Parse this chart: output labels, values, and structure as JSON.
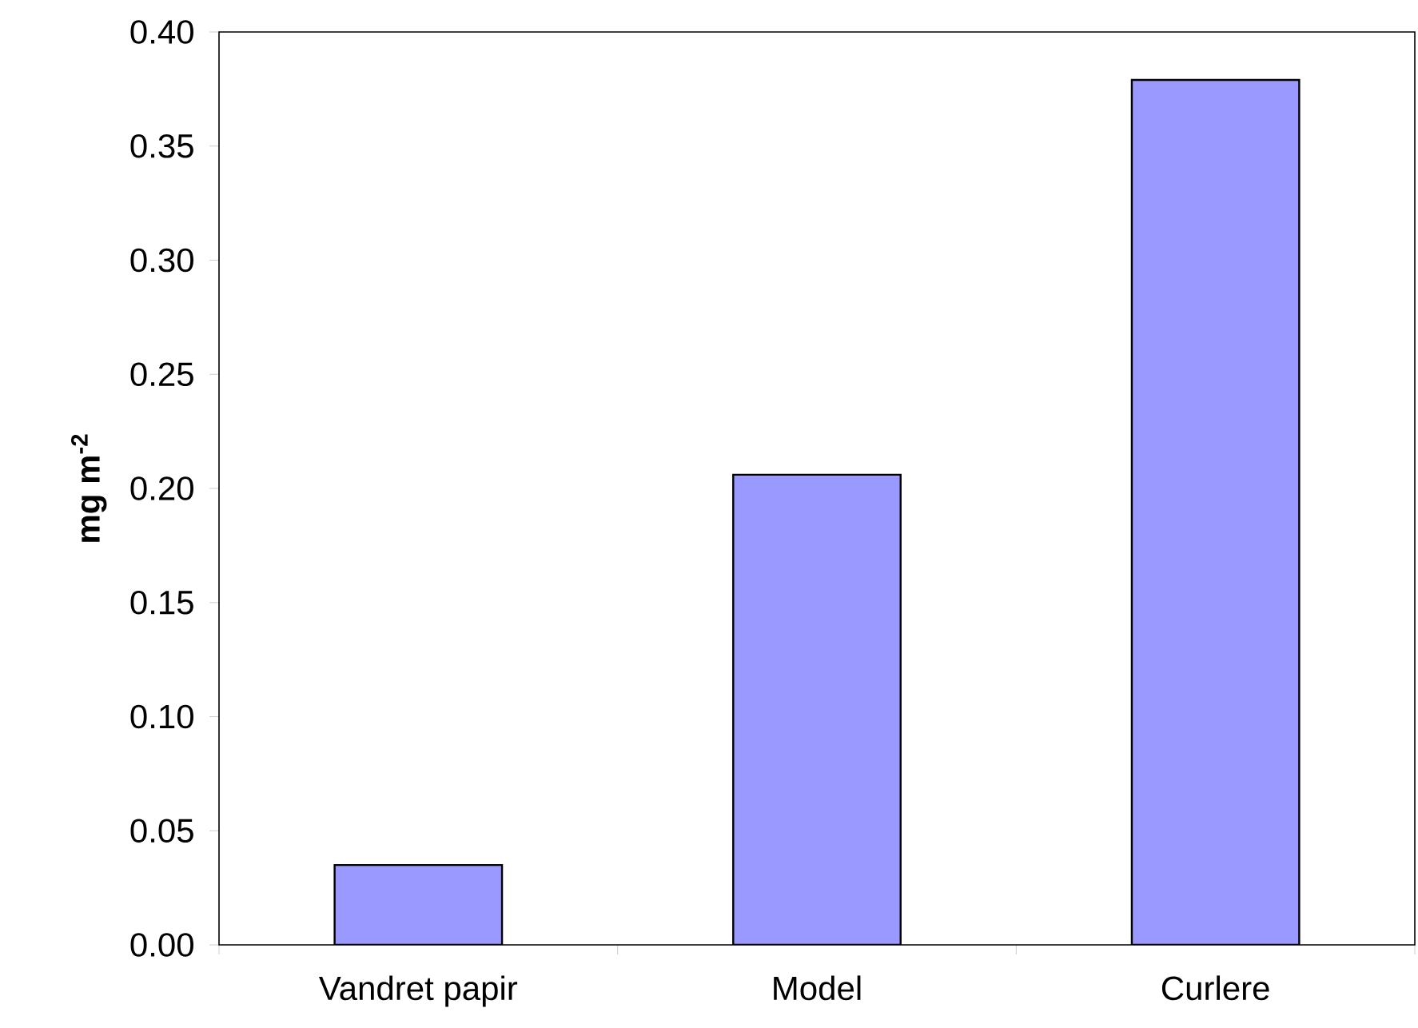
{
  "chart_data": {
    "type": "bar",
    "ylabel": "mg m$^{-2}$",
    "categories": [
      "Vandret papir",
      "Model",
      "Curlere"
    ],
    "values": [
      0.035,
      0.206,
      0.379
    ],
    "color": "#9999ff",
    "ylim": [
      0,
      0.4
    ],
    "yticks": [
      {
        "value": 0,
        "label": "0.00"
      },
      {
        "value": 0.05,
        "label": "0.05"
      },
      {
        "value": 0.1,
        "label": "0.10"
      },
      {
        "value": 0.15,
        "label": "0.15"
      },
      {
        "value": 0.2,
        "label": "0.20"
      },
      {
        "value": 0.25,
        "label": "0.25"
      },
      {
        "value": 0.3,
        "label": "0.30"
      },
      {
        "value": 0.35,
        "label": "0.35"
      },
      {
        "value": 0.4,
        "label": "0.40"
      }
    ],
    "grid": false
  }
}
